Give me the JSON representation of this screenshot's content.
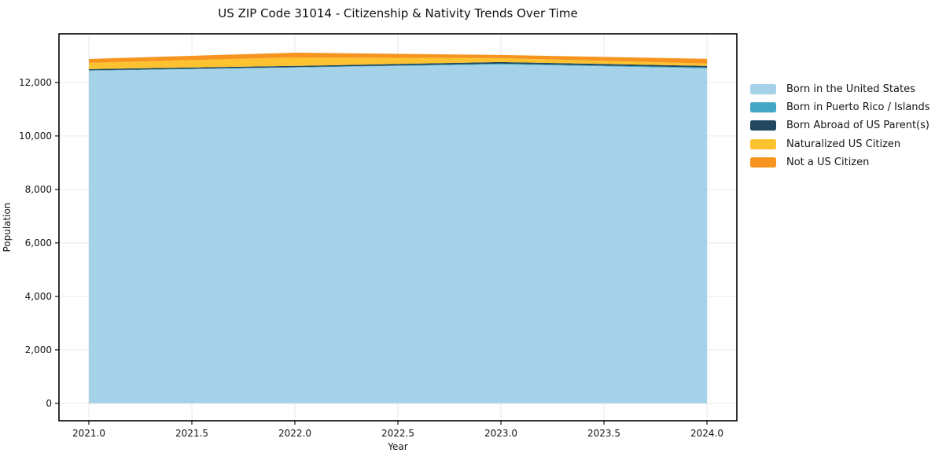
{
  "chart_data": {
    "type": "area",
    "stacked": true,
    "title": "US ZIP Code 31014 - Citizenship & Nativity Trends Over Time",
    "xlabel": "Year",
    "ylabel": "Population",
    "x": [
      2021,
      2022,
      2023,
      2024
    ],
    "series": [
      {
        "name": "Born in the United States",
        "color": "#a5d2e8",
        "values": [
          12440,
          12560,
          12675,
          12530
        ]
      },
      {
        "name": "Born in Puerto Rico / Islands",
        "color": "#45a7c6",
        "values": [
          15,
          15,
          30,
          30
        ]
      },
      {
        "name": "Born Abroad of US Parent(s)",
        "color": "#21485f",
        "values": [
          45,
          45,
          60,
          60
        ]
      },
      {
        "name": "Naturalized US Citizen",
        "color": "#fcc230",
        "values": [
          235,
          320,
          145,
          90
        ]
      },
      {
        "name": "Not a US Citizen",
        "color": "#f7941f",
        "values": [
          145,
          175,
          120,
          175
        ]
      }
    ],
    "x_tick_labels": [
      "2021.0",
      "2021.5",
      "2022.0",
      "2022.5",
      "2023.0",
      "2023.5",
      "2024.0"
    ],
    "x_tick_values": [
      2021.0,
      2021.5,
      2022.0,
      2022.5,
      2023.0,
      2023.5,
      2024.0
    ],
    "y_tick_labels": [
      "0",
      "2,000",
      "4,000",
      "6,000",
      "8,000",
      "10,000",
      "12,000"
    ],
    "y_tick_values": [
      0,
      2000,
      4000,
      6000,
      8000,
      10000,
      12000
    ],
    "xlim": [
      2020.855,
      2024.145
    ],
    "ylim": [
      -650,
      13820
    ],
    "grid": true,
    "grid_color": "#e9e9e9",
    "frame_color": "#000000",
    "legend_position": "right outside"
  }
}
